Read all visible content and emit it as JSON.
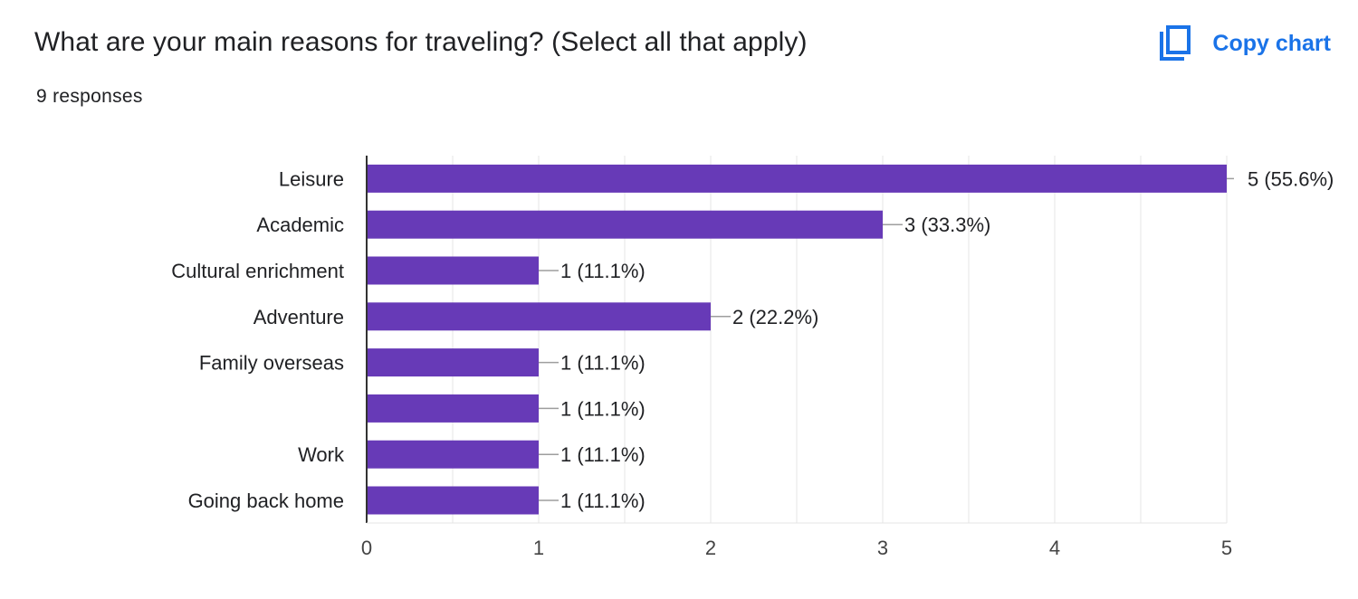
{
  "header": {
    "title": "What are your main reasons for traveling? (Select all that apply)",
    "responses": "9 responses",
    "copy_label": "Copy chart",
    "copy_icon": "copy-icon"
  },
  "colors": {
    "bar": "#673ab7",
    "accent": "#1a73e8",
    "grid": "#e6e6e6",
    "axis": "#333333",
    "text": "#202124"
  },
  "chart_data": {
    "type": "bar",
    "orientation": "horizontal",
    "categories": [
      "Leisure",
      "Academic",
      "Cultural enrichment",
      "Adventure",
      "Family overseas",
      "",
      "Work",
      "Going back home"
    ],
    "values": [
      5,
      3,
      1,
      2,
      1,
      1,
      1,
      1
    ],
    "value_labels": [
      "5 (55.6%)",
      "3 (33.3%)",
      "1 (11.1%)",
      "2 (22.2%)",
      "1 (11.1%)",
      "1 (11.1%)",
      "1 (11.1%)",
      "1 (11.1%)"
    ],
    "xlim": [
      0,
      5
    ],
    "x_ticks": [
      "0",
      "1",
      "2",
      "3",
      "4",
      "5"
    ],
    "grid": true,
    "title": "",
    "xlabel": "",
    "ylabel": ""
  }
}
